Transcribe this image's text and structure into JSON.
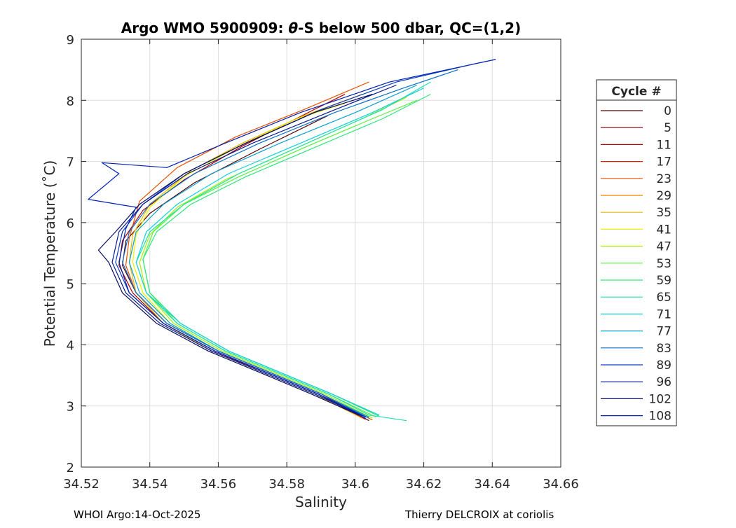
{
  "chart_data": {
    "type": "line",
    "title_prefix": "Argo WMO 5900909: ",
    "title_symbol": "θ",
    "title_suffix": "-S below 500 dbar,  QC=(1,2)",
    "xlabel": "Salinity",
    "ylabel": "Potential Temperature (˚C)",
    "xlim": [
      34.52,
      34.66
    ],
    "ylim": [
      2,
      9
    ],
    "xticks": [
      34.52,
      34.54,
      34.56,
      34.58,
      34.6,
      34.62,
      34.64,
      34.66
    ],
    "xtick_labels": [
      "34.52",
      "34.54",
      "34.56",
      "34.58",
      "34.6",
      "34.62",
      "34.64",
      "34.66"
    ],
    "yticks": [
      2,
      3,
      4,
      5,
      6,
      7,
      8,
      9
    ],
    "ytick_labels": [
      "2",
      "3",
      "4",
      "5",
      "6",
      "7",
      "8",
      "9"
    ],
    "grid": true,
    "legend": {
      "title": "Cycle #",
      "position": "outside-right",
      "entries": [
        {
          "label": "0",
          "color": "#550000"
        },
        {
          "label": "5",
          "color": "#8b0000"
        },
        {
          "label": "11",
          "color": "#b40000"
        },
        {
          "label": "17",
          "color": "#d42000"
        },
        {
          "label": "23",
          "color": "#e65000"
        },
        {
          "label": "29",
          "color": "#f08000"
        },
        {
          "label": "35",
          "color": "#e8b800"
        },
        {
          "label": "41",
          "color": "#f0f000"
        },
        {
          "label": "47",
          "color": "#a6f000"
        },
        {
          "label": "53",
          "color": "#5af040"
        },
        {
          "label": "59",
          "color": "#2ee57c"
        },
        {
          "label": "65",
          "color": "#1ee0b0"
        },
        {
          "label": "71",
          "color": "#12d0d6"
        },
        {
          "label": "77",
          "color": "#0aa0d0"
        },
        {
          "label": "83",
          "color": "#0a70c8"
        },
        {
          "label": "89",
          "color": "#0a3ec0"
        },
        {
          "label": "96",
          "color": "#0a1a90"
        },
        {
          "label": "102",
          "color": "#060c60"
        },
        {
          "label": "108",
          "color": "#0020b0"
        }
      ]
    },
    "representative_profiles": [
      {
        "cycle": "0",
        "color": "#550000",
        "points": [
          [
            34.604,
            2.76
          ],
          [
            34.59,
            3.2
          ],
          [
            34.575,
            3.55
          ],
          [
            34.56,
            3.9
          ],
          [
            34.545,
            4.35
          ],
          [
            34.536,
            4.85
          ],
          [
            34.532,
            5.3
          ],
          [
            34.533,
            5.7
          ],
          [
            34.54,
            6.15
          ],
          [
            34.553,
            6.65
          ],
          [
            34.572,
            7.2
          ],
          [
            34.592,
            7.75
          ]
        ]
      },
      {
        "cycle": "11",
        "color": "#b40000",
        "points": [
          [
            34.603,
            2.78
          ],
          [
            34.589,
            3.2
          ],
          [
            34.574,
            3.55
          ],
          [
            34.558,
            3.9
          ],
          [
            34.544,
            4.35
          ],
          [
            34.535,
            4.85
          ],
          [
            34.531,
            5.3
          ],
          [
            34.532,
            5.7
          ],
          [
            34.538,
            6.2
          ],
          [
            34.55,
            6.7
          ],
          [
            34.567,
            7.25
          ],
          [
            34.588,
            7.85
          ],
          [
            34.597,
            8.1
          ]
        ]
      },
      {
        "cycle": "23",
        "color": "#e65000",
        "points": [
          [
            34.605,
            2.77
          ],
          [
            34.59,
            3.2
          ],
          [
            34.575,
            3.55
          ],
          [
            34.56,
            3.9
          ],
          [
            34.545,
            4.35
          ],
          [
            34.536,
            4.85
          ],
          [
            34.533,
            5.3
          ],
          [
            34.534,
            5.75
          ],
          [
            34.537,
            6.35
          ],
          [
            34.548,
            6.9
          ],
          [
            34.565,
            7.4
          ],
          [
            34.585,
            7.85
          ],
          [
            34.604,
            8.3
          ]
        ]
      },
      {
        "cycle": "35",
        "color": "#e8b800",
        "points": [
          [
            34.602,
            2.8
          ],
          [
            34.588,
            3.2
          ],
          [
            34.573,
            3.55
          ],
          [
            34.558,
            3.9
          ],
          [
            34.544,
            4.35
          ],
          [
            34.536,
            4.85
          ],
          [
            34.534,
            5.35
          ],
          [
            34.535,
            5.8
          ],
          [
            34.54,
            6.3
          ],
          [
            34.552,
            6.85
          ],
          [
            34.567,
            7.3
          ],
          [
            34.585,
            7.75
          ],
          [
            34.602,
            8.1
          ]
        ]
      },
      {
        "cycle": "41",
        "color": "#f0f000",
        "points": [
          [
            34.604,
            2.8
          ],
          [
            34.59,
            3.2
          ],
          [
            34.575,
            3.55
          ],
          [
            34.56,
            3.9
          ],
          [
            34.546,
            4.35
          ],
          [
            34.538,
            4.85
          ],
          [
            34.535,
            5.35
          ],
          [
            34.536,
            5.8
          ],
          [
            34.54,
            6.25
          ],
          [
            34.55,
            6.75
          ],
          [
            34.566,
            7.25
          ],
          [
            34.583,
            7.7
          ],
          [
            34.597,
            7.95
          ]
        ]
      },
      {
        "cycle": "47",
        "color": "#a6f000",
        "points": [
          [
            34.605,
            2.8
          ],
          [
            34.591,
            3.2
          ],
          [
            34.576,
            3.55
          ],
          [
            34.561,
            3.9
          ],
          [
            34.547,
            4.35
          ],
          [
            34.539,
            4.85
          ],
          [
            34.537,
            5.35
          ],
          [
            34.54,
            5.8
          ],
          [
            34.548,
            6.25
          ],
          [
            34.562,
            6.7
          ],
          [
            34.582,
            7.2
          ],
          [
            34.602,
            7.7
          ],
          [
            34.615,
            8.05
          ]
        ]
      },
      {
        "cycle": "53",
        "color": "#5af040",
        "points": [
          [
            34.606,
            2.82
          ],
          [
            34.592,
            3.2
          ],
          [
            34.577,
            3.55
          ],
          [
            34.562,
            3.9
          ],
          [
            34.548,
            4.35
          ],
          [
            34.54,
            4.85
          ],
          [
            34.538,
            5.4
          ],
          [
            34.541,
            5.85
          ],
          [
            34.55,
            6.3
          ],
          [
            34.566,
            6.75
          ],
          [
            34.586,
            7.25
          ],
          [
            34.605,
            7.7
          ],
          [
            34.618,
            8.0
          ]
        ]
      },
      {
        "cycle": "59",
        "color": "#2ee57c",
        "points": [
          [
            34.607,
            2.83
          ],
          [
            34.593,
            3.2
          ],
          [
            34.578,
            3.55
          ],
          [
            34.563,
            3.9
          ],
          [
            34.549,
            4.35
          ],
          [
            34.54,
            4.85
          ],
          [
            34.538,
            5.4
          ],
          [
            34.542,
            5.85
          ],
          [
            34.552,
            6.3
          ],
          [
            34.568,
            6.75
          ],
          [
            34.589,
            7.25
          ],
          [
            34.608,
            7.7
          ],
          [
            34.622,
            8.1
          ]
        ]
      },
      {
        "cycle": "65",
        "color": "#1ee0b0",
        "points": [
          [
            34.615,
            2.76
          ],
          [
            34.604,
            2.85
          ],
          [
            34.592,
            3.2
          ],
          [
            34.577,
            3.55
          ],
          [
            34.562,
            3.9
          ],
          [
            34.548,
            4.35
          ],
          [
            34.539,
            4.85
          ],
          [
            34.536,
            5.35
          ],
          [
            34.54,
            5.85
          ],
          [
            34.55,
            6.3
          ],
          [
            34.566,
            6.8
          ],
          [
            34.588,
            7.35
          ],
          [
            34.608,
            7.85
          ],
          [
            34.622,
            8.3
          ]
        ]
      },
      {
        "cycle": "71",
        "color": "#12d0d6",
        "points": [
          [
            34.607,
            2.85
          ],
          [
            34.593,
            3.2
          ],
          [
            34.578,
            3.55
          ],
          [
            34.563,
            3.9
          ],
          [
            34.549,
            4.35
          ],
          [
            34.539,
            4.85
          ],
          [
            34.536,
            5.35
          ],
          [
            34.539,
            5.85
          ],
          [
            34.548,
            6.3
          ],
          [
            34.563,
            6.8
          ],
          [
            34.584,
            7.3
          ],
          [
            34.605,
            7.8
          ],
          [
            34.62,
            8.2
          ]
        ]
      },
      {
        "cycle": "77",
        "color": "#0aa0d0",
        "points": [
          [
            34.604,
            2.82
          ],
          [
            34.59,
            3.2
          ],
          [
            34.575,
            3.55
          ],
          [
            34.56,
            3.9
          ],
          [
            34.546,
            4.35
          ],
          [
            34.537,
            4.85
          ],
          [
            34.534,
            5.35
          ],
          [
            34.536,
            5.85
          ],
          [
            34.544,
            6.3
          ],
          [
            34.558,
            6.8
          ],
          [
            34.578,
            7.3
          ],
          [
            34.6,
            7.8
          ],
          [
            34.618,
            8.25
          ]
        ]
      },
      {
        "cycle": "83",
        "color": "#0a70c8",
        "points": [
          [
            34.604,
            2.8
          ],
          [
            34.59,
            3.2
          ],
          [
            34.575,
            3.55
          ],
          [
            34.56,
            3.9
          ],
          [
            34.545,
            4.35
          ],
          [
            34.536,
            4.85
          ],
          [
            34.532,
            5.35
          ],
          [
            34.534,
            5.85
          ],
          [
            34.54,
            6.3
          ],
          [
            34.553,
            6.8
          ],
          [
            34.572,
            7.3
          ],
          [
            34.594,
            7.8
          ],
          [
            34.614,
            8.2
          ],
          [
            34.63,
            8.5
          ]
        ]
      },
      {
        "cycle": "89",
        "color": "#0a3ec0",
        "points": [
          [
            34.603,
            2.8
          ],
          [
            34.589,
            3.2
          ],
          [
            34.574,
            3.55
          ],
          [
            34.559,
            3.9
          ],
          [
            34.544,
            4.35
          ],
          [
            34.534,
            4.85
          ],
          [
            34.53,
            5.35
          ],
          [
            34.532,
            5.85
          ],
          [
            34.538,
            6.3
          ],
          [
            34.55,
            6.8
          ],
          [
            34.568,
            7.3
          ],
          [
            34.59,
            7.85
          ],
          [
            34.612,
            8.3
          ],
          [
            34.635,
            8.6
          ],
          [
            34.641,
            8.67
          ]
        ]
      },
      {
        "cycle": "96",
        "color": "#0a1a90",
        "points": [
          [
            34.602,
            2.84
          ],
          [
            34.588,
            3.2
          ],
          [
            34.573,
            3.55
          ],
          [
            34.558,
            3.9
          ],
          [
            34.543,
            4.35
          ],
          [
            34.533,
            4.85
          ],
          [
            34.529,
            5.35
          ],
          [
            34.531,
            5.85
          ],
          [
            34.538,
            6.3
          ],
          [
            34.551,
            6.8
          ],
          [
            34.57,
            7.3
          ],
          [
            34.592,
            7.8
          ],
          [
            34.612,
            8.25
          ]
        ]
      },
      {
        "cycle": "102",
        "color": "#060c60",
        "points": [
          [
            34.601,
            2.85
          ],
          [
            34.587,
            3.2
          ],
          [
            34.572,
            3.55
          ],
          [
            34.557,
            3.9
          ],
          [
            34.542,
            4.35
          ],
          [
            34.532,
            4.85
          ],
          [
            34.528,
            5.35
          ],
          [
            34.525,
            5.55
          ],
          [
            34.53,
            5.85
          ],
          [
            34.537,
            6.3
          ],
          [
            34.55,
            6.8
          ],
          [
            34.568,
            7.3
          ],
          [
            34.588,
            7.8
          ],
          [
            34.605,
            8.1
          ]
        ]
      },
      {
        "cycle": "108",
        "color": "#0020b0",
        "points": [
          [
            34.603,
            2.82
          ],
          [
            34.589,
            3.2
          ],
          [
            34.574,
            3.55
          ],
          [
            34.559,
            3.9
          ],
          [
            34.544,
            4.35
          ],
          [
            34.534,
            4.85
          ],
          [
            34.531,
            5.35
          ],
          [
            34.533,
            5.9
          ],
          [
            34.536,
            6.25
          ],
          [
            34.522,
            6.38
          ],
          [
            34.531,
            6.8
          ],
          [
            34.526,
            6.98
          ],
          [
            34.545,
            6.9
          ],
          [
            34.562,
            7.3
          ],
          [
            34.584,
            7.8
          ],
          [
            34.61,
            8.3
          ],
          [
            34.641,
            8.67
          ]
        ]
      }
    ]
  },
  "footer": {
    "left": "WHOI Argo:14-Oct-2025",
    "right": "Thierry DELCROIX at coriolis"
  }
}
